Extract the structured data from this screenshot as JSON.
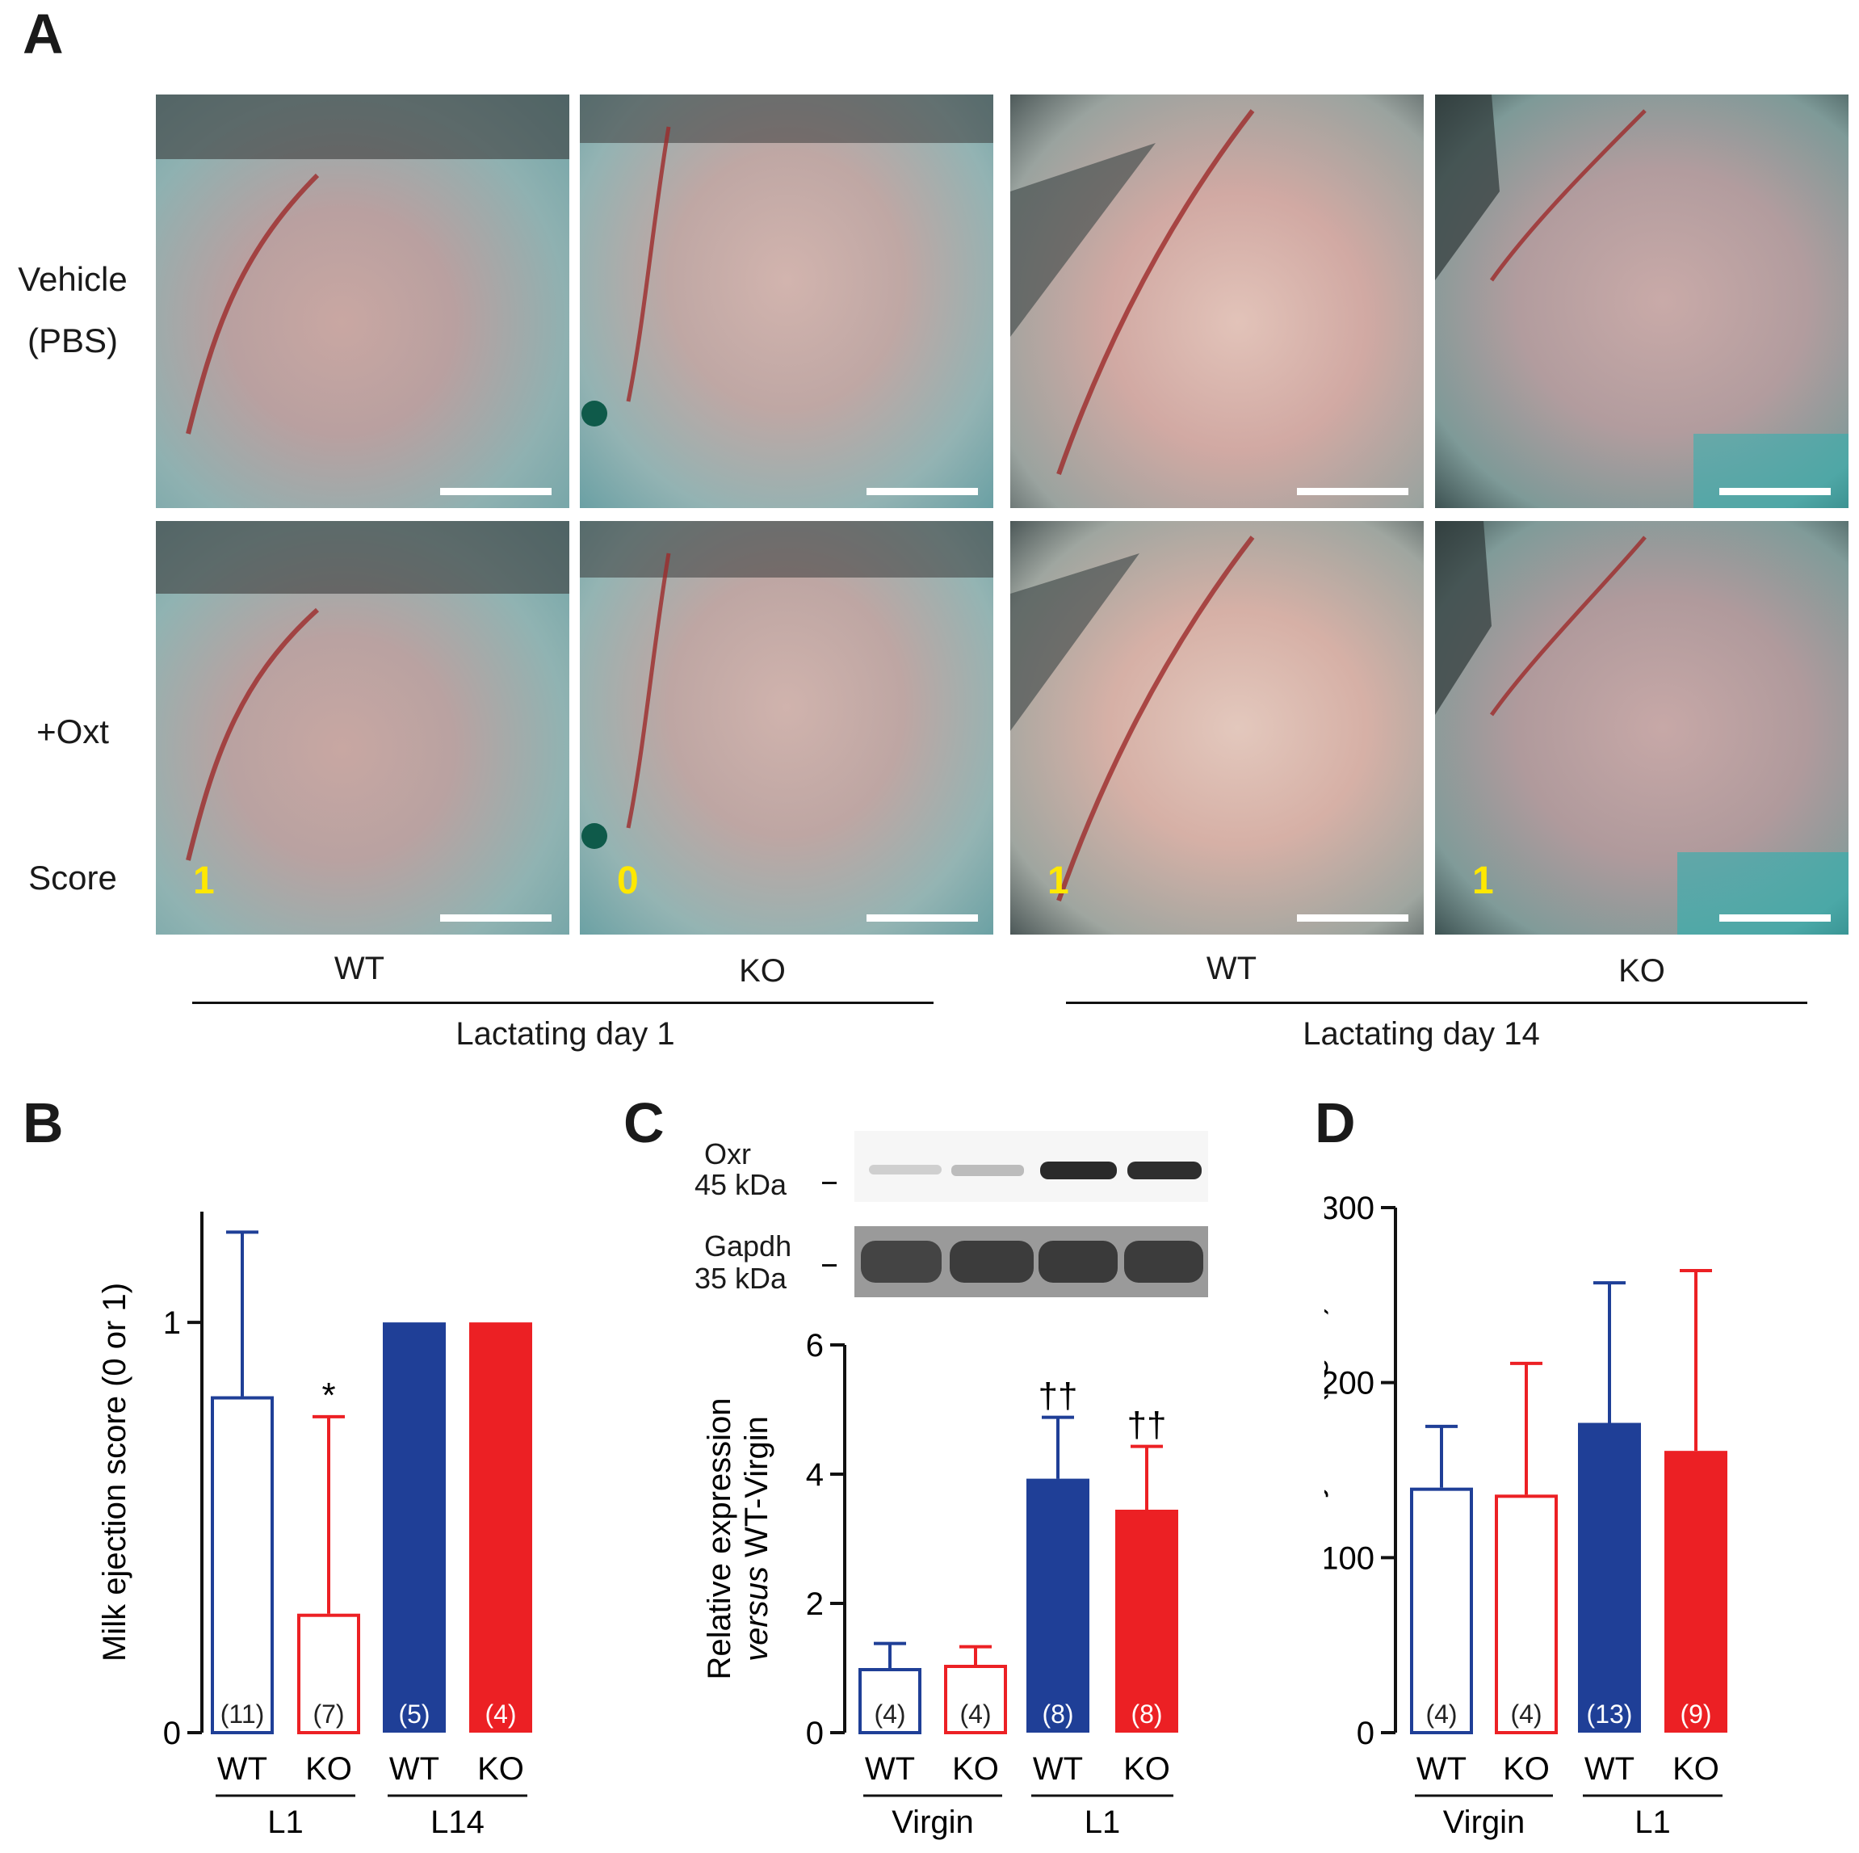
{
  "panels": {
    "A": {
      "letter": "A",
      "row_labels": [
        "Vehicle",
        "(PBS)",
        "+Oxt",
        "Score"
      ],
      "scores": [
        "1",
        "0",
        "1",
        "1"
      ],
      "genotypes": [
        "WT",
        "KO",
        "WT",
        "KO"
      ],
      "groups": [
        "Lactating day 1",
        "Lactating day 14"
      ]
    },
    "B": {
      "letter": "B"
    },
    "C": {
      "letter": "C",
      "blot_labels": {
        "oxr_name": "Oxr",
        "oxr_size": "45 kDa",
        "gapdh_name": "Gapdh",
        "gapdh_size": "35 kDa"
      }
    },
    "D": {
      "letter": "D"
    }
  },
  "colors": {
    "wt": "#1f3f97",
    "ko": "#ec2024",
    "score_text": "#ffe800"
  },
  "chart_data": [
    {
      "id": "B",
      "type": "bar",
      "ylabel": "Milk ejection score (0 or 1)",
      "ylim": [
        0,
        1.27
      ],
      "yticks": [
        "0",
        "1"
      ],
      "ytick_values": [
        0,
        1
      ],
      "categories": [
        "WT",
        "KO",
        "WT",
        "KO"
      ],
      "groups": [
        "L1",
        "L14"
      ],
      "values": [
        0.82,
        0.29,
        1.0,
        1.0
      ],
      "errors": [
        0.4,
        0.48,
        0,
        0
      ],
      "n": [
        "(11)",
        "(7)",
        "(5)",
        "(4)"
      ],
      "filled": [
        false,
        false,
        true,
        true
      ],
      "color_keys": [
        "wt",
        "ko",
        "wt",
        "ko"
      ],
      "marks": [
        "",
        "*",
        "",
        ""
      ]
    },
    {
      "id": "C",
      "type": "bar",
      "ylabel_line1": "Relative expression",
      "ylabel_line2_italic": "versus",
      "ylabel_line2_rest": " WT-Virgin",
      "ylim": [
        0,
        6
      ],
      "yticks": [
        "0",
        "2",
        "4",
        "6"
      ],
      "ytick_values": [
        0,
        2,
        4,
        6
      ],
      "categories": [
        "WT",
        "KO",
        "WT",
        "KO"
      ],
      "groups": [
        "Virgin",
        "L1"
      ],
      "values": [
        1.0,
        1.05,
        3.93,
        3.45
      ],
      "errors": [
        0.38,
        0.28,
        0.95,
        0.98
      ],
      "n": [
        "(4)",
        "(4)",
        "(8)",
        "(8)"
      ],
      "filled": [
        false,
        false,
        true,
        true
      ],
      "color_keys": [
        "wt",
        "ko",
        "wt",
        "ko"
      ],
      "marks": [
        "",
        "",
        "††",
        "††"
      ]
    },
    {
      "id": "D",
      "type": "bar",
      "ylabel": "Serum oxytocin (pg/ml)",
      "ylim": [
        0,
        300
      ],
      "yticks": [
        "0",
        "100",
        "200",
        "300"
      ],
      "ytick_values": [
        0,
        100,
        200,
        300
      ],
      "categories": [
        "WT",
        "KO",
        "WT",
        "KO"
      ],
      "groups": [
        "Virgin",
        "L1"
      ],
      "values": [
        140,
        136,
        177,
        161
      ],
      "errors": [
        35,
        75,
        80,
        103
      ],
      "n": [
        "(4)",
        "(4)",
        "(13)",
        "(9)"
      ],
      "filled": [
        false,
        false,
        true,
        true
      ],
      "color_keys": [
        "wt",
        "ko",
        "wt",
        "ko"
      ],
      "marks": [
        "",
        "",
        "",
        ""
      ]
    }
  ]
}
